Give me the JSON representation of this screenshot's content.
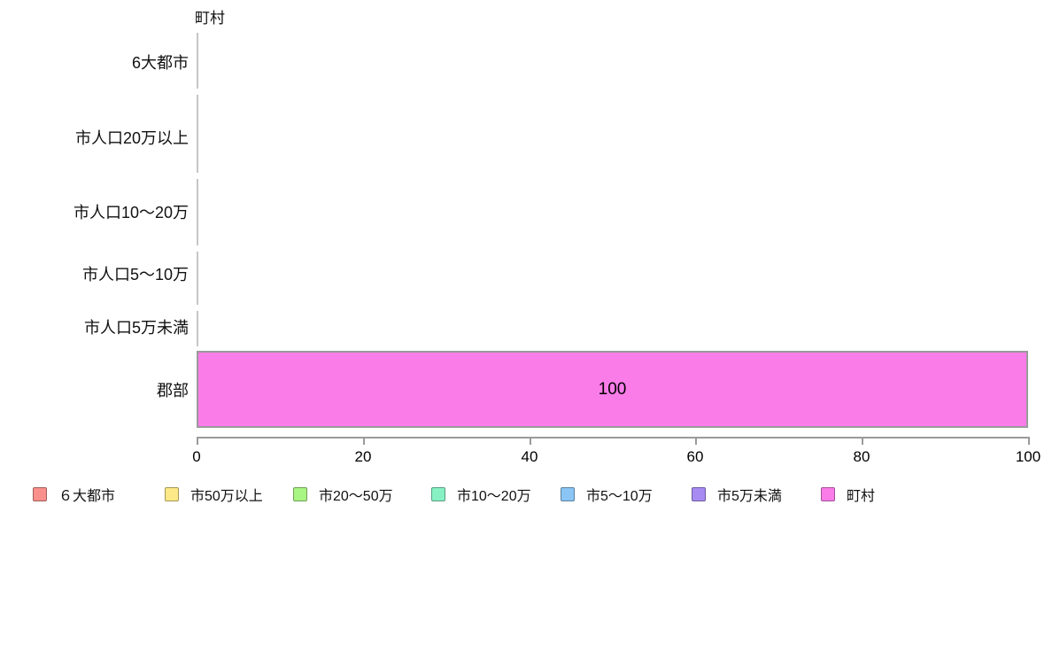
{
  "chart_data": {
    "type": "bar",
    "orientation": "horizontal",
    "title": "町村",
    "categories": [
      "6大都市",
      "市人口20万以上",
      "市人口10〜20万",
      "市人口5〜10万",
      "市人口5万未満",
      "郡部"
    ],
    "values": [
      0,
      0,
      0,
      0,
      0,
      100
    ],
    "bar_value_labels": [
      "",
      "",
      "",
      "",
      "",
      "100"
    ],
    "xlabel": "",
    "ylabel": "",
    "xlim": [
      0,
      100
    ],
    "x_ticks": [
      "0",
      "20",
      "40",
      "60",
      "80",
      "100"
    ],
    "x_tick_values": [
      0,
      20,
      40,
      60,
      80,
      100
    ],
    "grid": false,
    "bar_color": "#f97ce8",
    "bar_border_color": "#9a9a9a",
    "axis_color": "#9a9a9a",
    "legend_position": "bottom",
    "legend": [
      {
        "label": "６大都市",
        "color": "#f9908b"
      },
      {
        "label": "市50万以上",
        "color": "#fce886"
      },
      {
        "label": "市20〜50万",
        "color": "#a9f583"
      },
      {
        "label": "市10〜20万",
        "color": "#87f1c3"
      },
      {
        "label": "市5〜10万",
        "color": "#8ac5f5"
      },
      {
        "label": "市5万未満",
        "color": "#a78bf3"
      },
      {
        "label": "町村",
        "color": "#f97ce8"
      }
    ]
  }
}
